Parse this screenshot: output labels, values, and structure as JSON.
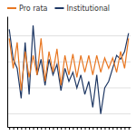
{
  "chart_data": {
    "type": "line",
    "categories": [
      null,
      null,
      null,
      null,
      null,
      null,
      null,
      null,
      null,
      null,
      null,
      null,
      null,
      null,
      null,
      null,
      null,
      null,
      null,
      null,
      null,
      null,
      null,
      null,
      null,
      null,
      null,
      null,
      null,
      null,
      null
    ],
    "series": [
      {
        "name": "Pro rata",
        "color": "#E87722",
        "values": [
          1.8,
          -0.5,
          1.5,
          -2.2,
          0.8,
          -1.2,
          0.5,
          -1.0,
          1.8,
          -1.5,
          0.8,
          -0.8,
          1.0,
          -1.8,
          0.5,
          -1.0,
          0.6,
          -1.2,
          0.5,
          -0.8,
          0.5,
          -1.0,
          0.5,
          -0.8,
          0.3,
          -0.5,
          0.3,
          -0.8,
          0.8,
          -0.5,
          1.8
        ]
      },
      {
        "name": "Institutional",
        "color": "#1F3864",
        "values": [
          2.5,
          0.2,
          -0.5,
          -2.8,
          1.5,
          -2.5,
          2.8,
          -1.0,
          0.2,
          -1.8,
          0.2,
          -1.0,
          -0.2,
          -2.2,
          -0.5,
          -1.5,
          -0.8,
          -2.0,
          -1.0,
          -2.5,
          -1.5,
          -3.5,
          -1.0,
          -4.0,
          -2.0,
          -1.5,
          -0.5,
          0.5,
          0.2,
          0.8,
          2.2
        ]
      }
    ],
    "ylim": [
      -5.0,
      3.5
    ],
    "yticks": [
      -4,
      -2,
      0,
      2
    ],
    "grid": true,
    "legend": "upper left",
    "tick_labels": false
  }
}
